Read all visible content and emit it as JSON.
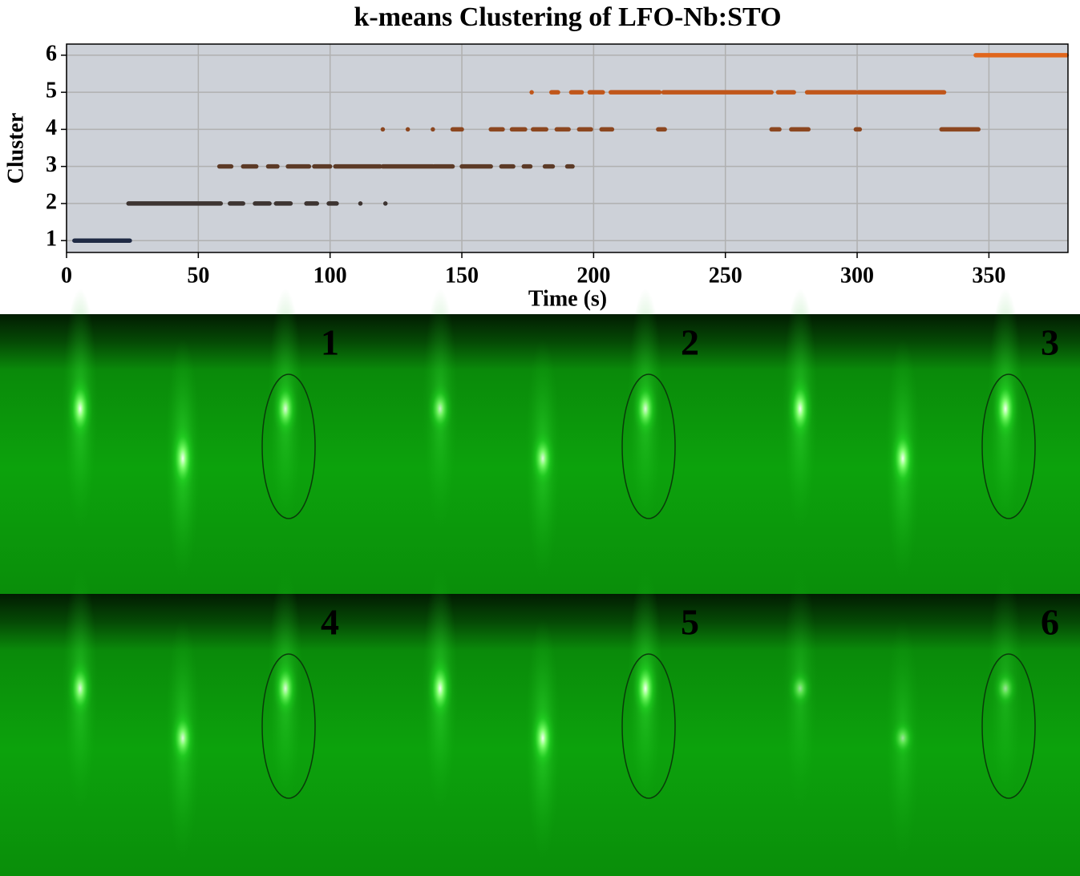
{
  "chart_data": {
    "type": "timeline",
    "title": "k-means Clustering of LFO-Nb:STO",
    "xlabel": "Time (s)",
    "ylabel": "Cluster",
    "xlim": [
      0,
      380
    ],
    "xticks": [
      0,
      50,
      100,
      150,
      200,
      250,
      300,
      350
    ],
    "ylim": [
      0.68,
      6.3
    ],
    "yticks": [
      1,
      2,
      3,
      4,
      5,
      6
    ],
    "grid": true,
    "background": "#cdd1d8",
    "series": [
      {
        "y": 1,
        "color": "#1f2a44",
        "segments": [
          [
            3,
            24
          ]
        ]
      },
      {
        "y": 2,
        "color": "#3d3431",
        "segments": [
          [
            23.5,
            58.5
          ],
          [
            62,
            67
          ],
          [
            71.5,
            77
          ],
          [
            79.5,
            85
          ],
          [
            91,
            95
          ],
          [
            99.5,
            102.5
          ],
          [
            111.5,
            111.5
          ],
          [
            121,
            121
          ]
        ]
      },
      {
        "y": 3,
        "color": "#5c3a26",
        "segments": [
          [
            58,
            62.5
          ],
          [
            67,
            72
          ],
          [
            76.5,
            80
          ],
          [
            84,
            92
          ],
          [
            94,
            100
          ],
          [
            102,
            119
          ],
          [
            120,
            139
          ],
          [
            139.5,
            146.5
          ],
          [
            150,
            161
          ],
          [
            165,
            169.5
          ],
          [
            173.5,
            176
          ],
          [
            181.5,
            184.5
          ],
          [
            190,
            192
          ]
        ]
      },
      {
        "y": 4,
        "color": "#8c4720",
        "segments": [
          [
            120,
            120
          ],
          [
            129.5,
            129.5
          ],
          [
            139,
            139
          ],
          [
            146.5,
            150
          ],
          [
            161,
            165.5
          ],
          [
            169,
            174
          ],
          [
            177,
            182
          ],
          [
            186,
            190.5
          ],
          [
            194.5,
            199
          ],
          [
            203,
            207
          ],
          [
            224.5,
            227
          ],
          [
            267.5,
            270.5
          ],
          [
            275,
            281.5
          ],
          [
            299.5,
            301
          ],
          [
            332,
            346
          ]
        ]
      },
      {
        "y": 5,
        "color": "#c0561a",
        "segments": [
          [
            176.5,
            176.5
          ],
          [
            184,
            186.5
          ],
          [
            191.5,
            195.5
          ],
          [
            198.5,
            203.5
          ],
          [
            206.5,
            225
          ],
          [
            226.5,
            267.5
          ],
          [
            270,
            276
          ],
          [
            281,
            299.5
          ],
          [
            300.5,
            333
          ]
        ]
      },
      {
        "y": 6,
        "color": "#e0661c",
        "segments": [
          [
            345,
            379.5
          ]
        ]
      }
    ]
  },
  "panels": {
    "labels": [
      "1",
      "2",
      "3",
      "4",
      "5",
      "6"
    ],
    "label_color": "#c0561a"
  }
}
